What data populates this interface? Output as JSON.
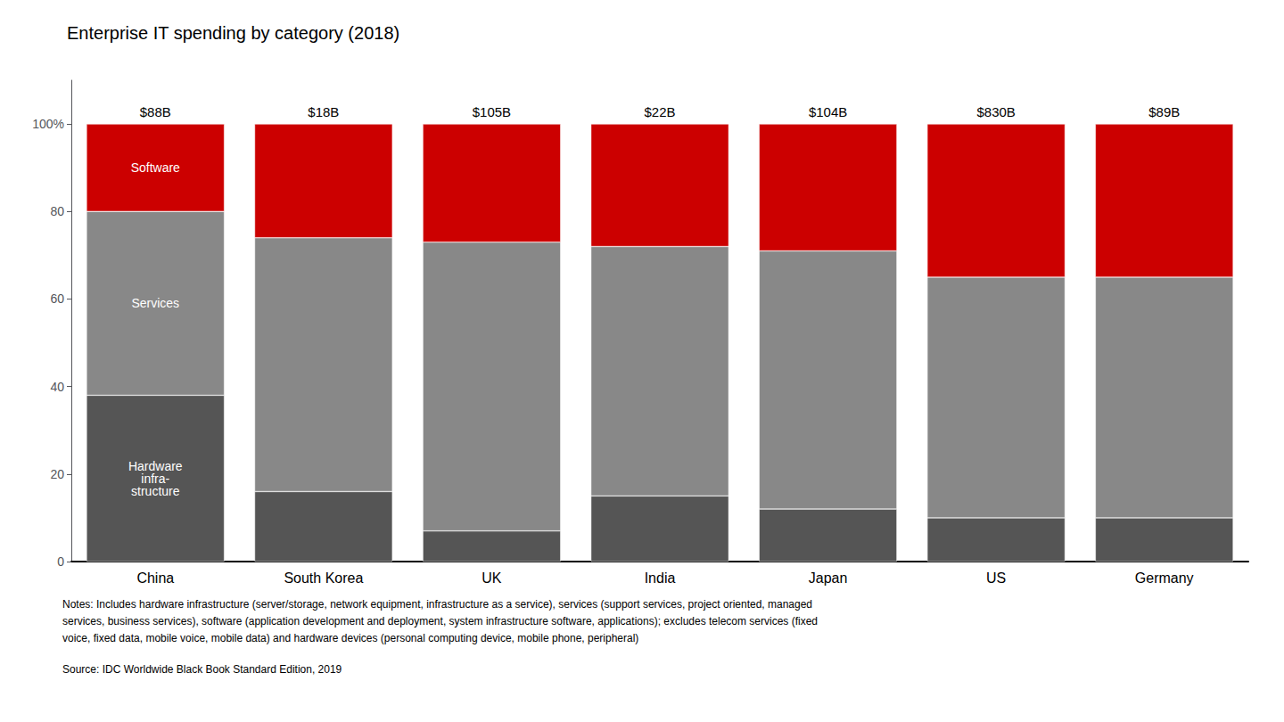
{
  "chart_data": {
    "type": "bar",
    "title": "Enterprise IT spending by category (2018)",
    "categories": [
      "China",
      "South Korea",
      "UK",
      "India",
      "Japan",
      "US",
      "Germany"
    ],
    "series": [
      {
        "name": "Hardware\ninfra-\nstructure",
        "color": "#555555",
        "values": [
          38,
          16,
          7,
          15,
          12,
          10,
          10
        ]
      },
      {
        "name": "Services",
        "color": "#888888",
        "values": [
          42,
          58,
          66,
          57,
          59,
          55,
          55
        ]
      },
      {
        "name": "Software",
        "color": "#cc0000",
        "values": [
          20,
          26,
          27,
          28,
          29,
          35,
          35
        ]
      }
    ],
    "stacked": true,
    "ylim": [
      0,
      110
    ],
    "yticks": [
      0,
      20,
      40,
      60,
      80,
      {
        "value": 100,
        "label": "100%"
      }
    ],
    "grid": false,
    "annotations": [
      {
        "category": "China",
        "text": "$88B"
      },
      {
        "category": "South Korea",
        "text": "$18B"
      },
      {
        "category": "UK",
        "text": "$105B"
      },
      {
        "category": "India",
        "text": "$22B"
      },
      {
        "category": "Japan",
        "text": "$104B"
      },
      {
        "category": "US",
        "text": "$830B"
      },
      {
        "category": "Germany",
        "text": "$89B"
      }
    ],
    "notes": [
      "Notes: Includes hardware infrastructure (server/storage, network equipment, infrastructure as a service), services (support services, project oriented, managed",
      "services, business services), software (application development and deployment, system infrastructure software, applications); excludes telecom services (fixed",
      "voice, fixed data, mobile voice, mobile data) and hardware devices (personal computing device, mobile phone, peripheral)"
    ],
    "source": "Source: IDC Worldwide Black Book Standard Edition, 2019"
  }
}
